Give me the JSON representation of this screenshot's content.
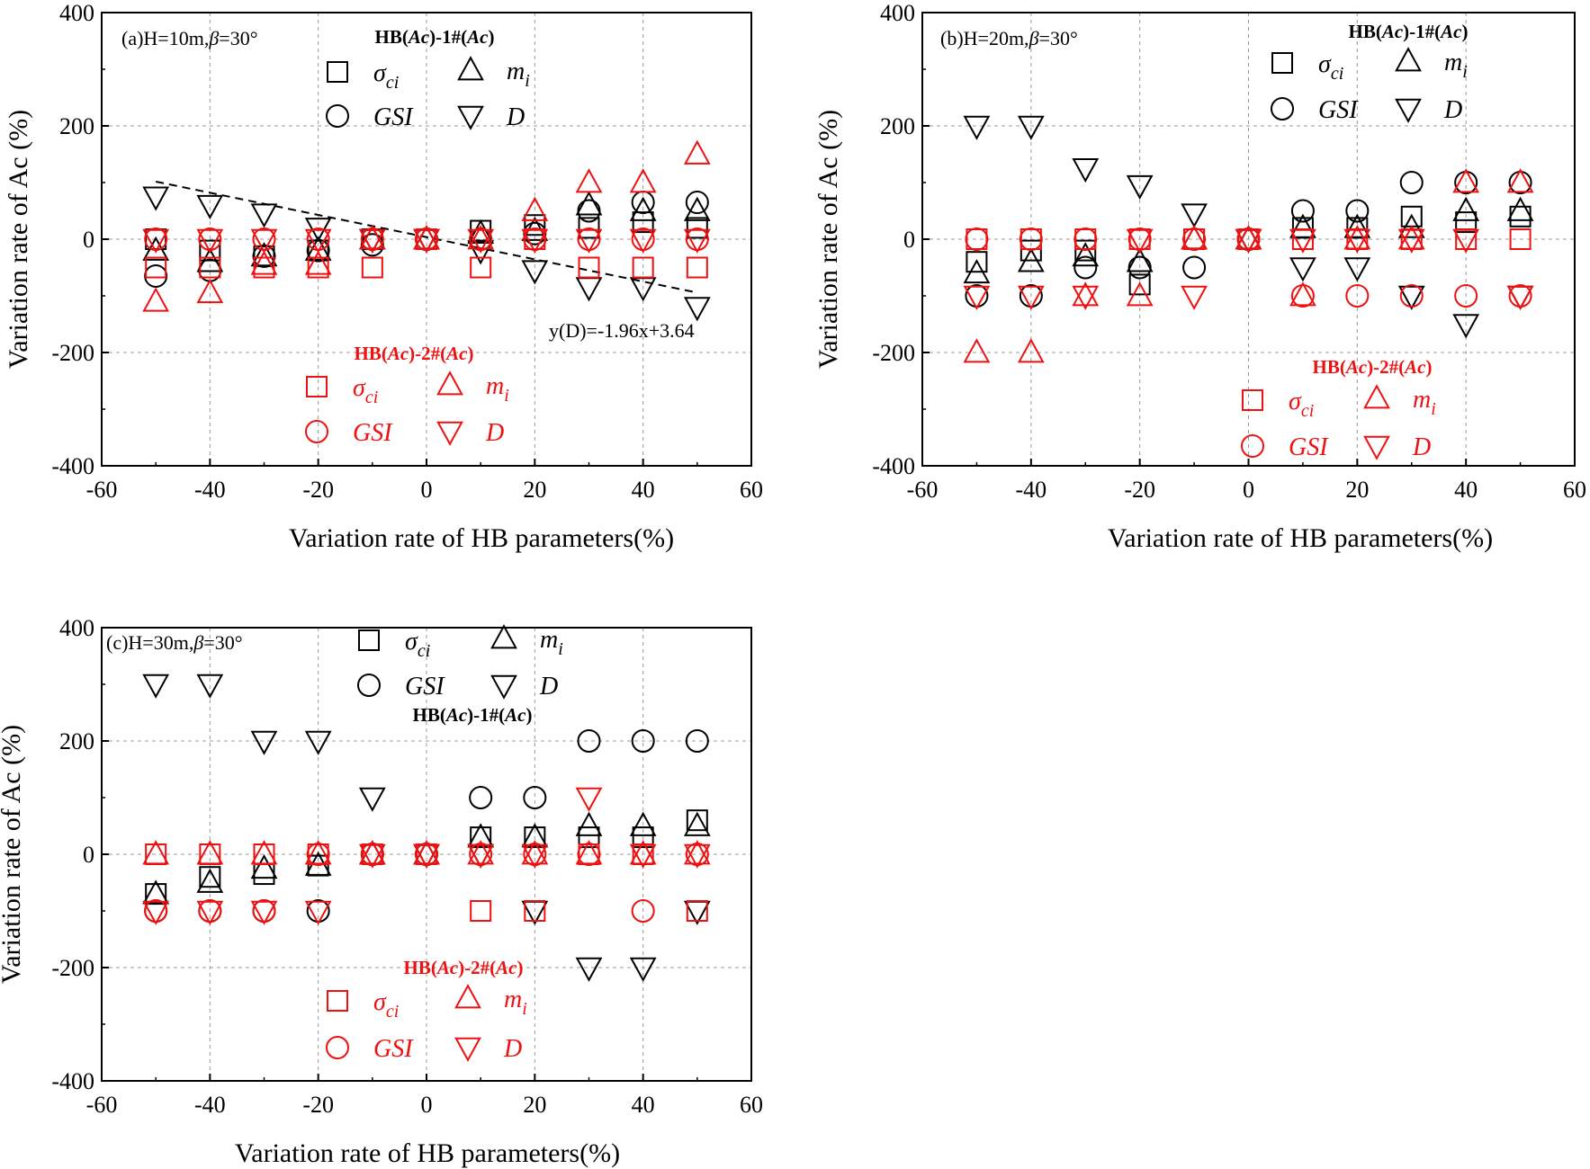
{
  "figure": {
    "xlabel": "Variation rate of HB parameters(%)",
    "ylabel": "Variation rate of Ac (%)"
  },
  "series_meta": {
    "names": [
      "sigma_ci",
      "m_i",
      "GSI",
      "D"
    ],
    "markers": {
      "sigma_ci": "square",
      "m_i": "triangle-up",
      "GSI": "circle",
      "D": "triangle-down"
    }
  },
  "colors": {
    "group1": "#000000",
    "group2": "#ee1111",
    "grid": "#9a9a9a"
  },
  "legend_labels": {
    "group1_title": "HB(Ac)-1#(Ac)",
    "group2_title": "HB(Ac)-2#(Ac)",
    "sigma_ci": "σci",
    "m_i": "mi",
    "GSI": "GSI",
    "D": "D"
  },
  "chart_data": [
    {
      "type": "scatter",
      "title": "(a)H=10m,β=30°",
      "xlabel": "Variation rate of HB parameters(%)",
      "ylabel": "Variation rate of Ac (%)",
      "xlim": [
        -60,
        60
      ],
      "ylim": [
        -400,
        400
      ],
      "xticks": [
        -60,
        -40,
        -20,
        0,
        20,
        40,
        60
      ],
      "yticks": [
        -400,
        -200,
        0,
        200,
        400
      ],
      "x": [
        -50,
        -40,
        -30,
        -20,
        -10,
        0,
        10,
        20,
        30,
        40,
        50
      ],
      "annotation": "y(D)=-1.96x+3.64",
      "trendline": {
        "slope": -1.96,
        "intercept": 3.64,
        "x_range": [
          -50,
          50
        ]
      },
      "group1": {
        "sigma_ci": [
          0,
          -20,
          -30,
          -20,
          0,
          0,
          15,
          25,
          20,
          30,
          20
        ],
        "m_i": [
          -20,
          -40,
          -30,
          -20,
          0,
          0,
          10,
          15,
          60,
          50,
          50
        ],
        "GSI": [
          -65,
          -55,
          -30,
          -20,
          -10,
          0,
          0,
          10,
          50,
          65,
          65
        ],
        "D": [
          75,
          60,
          45,
          20,
          0,
          0,
          -20,
          -55,
          -85,
          -85,
          -120
        ]
      },
      "group2": {
        "sigma_ci": [
          -50,
          -50,
          -50,
          -50,
          -50,
          0,
          -50,
          0,
          -50,
          -50,
          -50
        ],
        "m_i": [
          -110,
          -95,
          -45,
          -45,
          0,
          0,
          0,
          50,
          100,
          100,
          150
        ],
        "GSI": [
          0,
          0,
          0,
          0,
          0,
          0,
          0,
          0,
          0,
          0,
          0
        ],
        "D": [
          0,
          0,
          0,
          0,
          0,
          0,
          0,
          0,
          0,
          0,
          0
        ]
      }
    },
    {
      "type": "scatter",
      "title": "(b)H=20m,β=30°",
      "xlabel": "Variation rate of HB parameters(%)",
      "ylabel": "Variation rate of Ac (%)",
      "xlim": [
        -60,
        60
      ],
      "ylim": [
        -400,
        400
      ],
      "xticks": [
        -60,
        -40,
        -20,
        0,
        20,
        40,
        60
      ],
      "yticks": [
        -400,
        -200,
        0,
        200,
        400
      ],
      "x": [
        -50,
        -40,
        -30,
        -20,
        -10,
        0,
        10,
        20,
        30,
        40,
        50
      ],
      "group1": {
        "sigma_ci": [
          -40,
          -20,
          -20,
          -80,
          0,
          0,
          20,
          20,
          40,
          30,
          40
        ],
        "m_i": [
          -60,
          -40,
          -30,
          -40,
          0,
          0,
          20,
          20,
          20,
          50,
          50
        ],
        "GSI": [
          -100,
          -100,
          -50,
          -50,
          -50,
          0,
          50,
          50,
          100,
          100,
          100
        ],
        "D": [
          200,
          200,
          125,
          95,
          45,
          0,
          -50,
          -50,
          -100,
          -150,
          -100
        ]
      },
      "group2": {
        "sigma_ci": [
          0,
          0,
          0,
          0,
          0,
          0,
          0,
          0,
          0,
          0,
          0
        ],
        "m_i": [
          -200,
          -200,
          -100,
          -100,
          0,
          0,
          -100,
          0,
          0,
          100,
          100
        ],
        "GSI": [
          0,
          0,
          0,
          0,
          0,
          0,
          -100,
          -100,
          -100,
          -100,
          -100
        ],
        "D": [
          -100,
          -100,
          -100,
          0,
          -100,
          0,
          0,
          0,
          0,
          0,
          -100
        ]
      }
    },
    {
      "type": "scatter",
      "title": "(c)H=30m,β=30°",
      "xlabel": "Variation rate of HB parameters(%)",
      "ylabel": "Variation rate of Ac (%)",
      "xlim": [
        -60,
        60
      ],
      "ylim": [
        -400,
        400
      ],
      "xticks": [
        -60,
        -40,
        -20,
        0,
        20,
        40,
        60
      ],
      "yticks": [
        -400,
        -200,
        0,
        200,
        400
      ],
      "x": [
        -50,
        -40,
        -30,
        -20,
        -10,
        0,
        10,
        20,
        30,
        40,
        50
      ],
      "group1": {
        "sigma_ci": [
          -70,
          -40,
          -35,
          -20,
          0,
          0,
          30,
          30,
          30,
          30,
          60
        ],
        "m_i": [
          -70,
          -50,
          -25,
          -20,
          0,
          0,
          30,
          30,
          50,
          50,
          50
        ],
        "GSI": [
          -100,
          -100,
          -100,
          -100,
          0,
          0,
          100,
          100,
          200,
          200,
          200
        ],
        "D": [
          300,
          300,
          200,
          200,
          100,
          0,
          0,
          -100,
          -200,
          -200,
          -100
        ]
      },
      "group2": {
        "sigma_ci": [
          0,
          0,
          0,
          0,
          0,
          0,
          -100,
          -100,
          0,
          0,
          -100
        ],
        "m_i": [
          0,
          0,
          0,
          0,
          0,
          0,
          0,
          0,
          0,
          0,
          0
        ],
        "GSI": [
          -100,
          -100,
          -100,
          0,
          0,
          0,
          0,
          0,
          0,
          -100,
          0
        ],
        "D": [
          -100,
          -100,
          -100,
          -100,
          0,
          0,
          0,
          0,
          100,
          0,
          0
        ]
      }
    }
  ]
}
